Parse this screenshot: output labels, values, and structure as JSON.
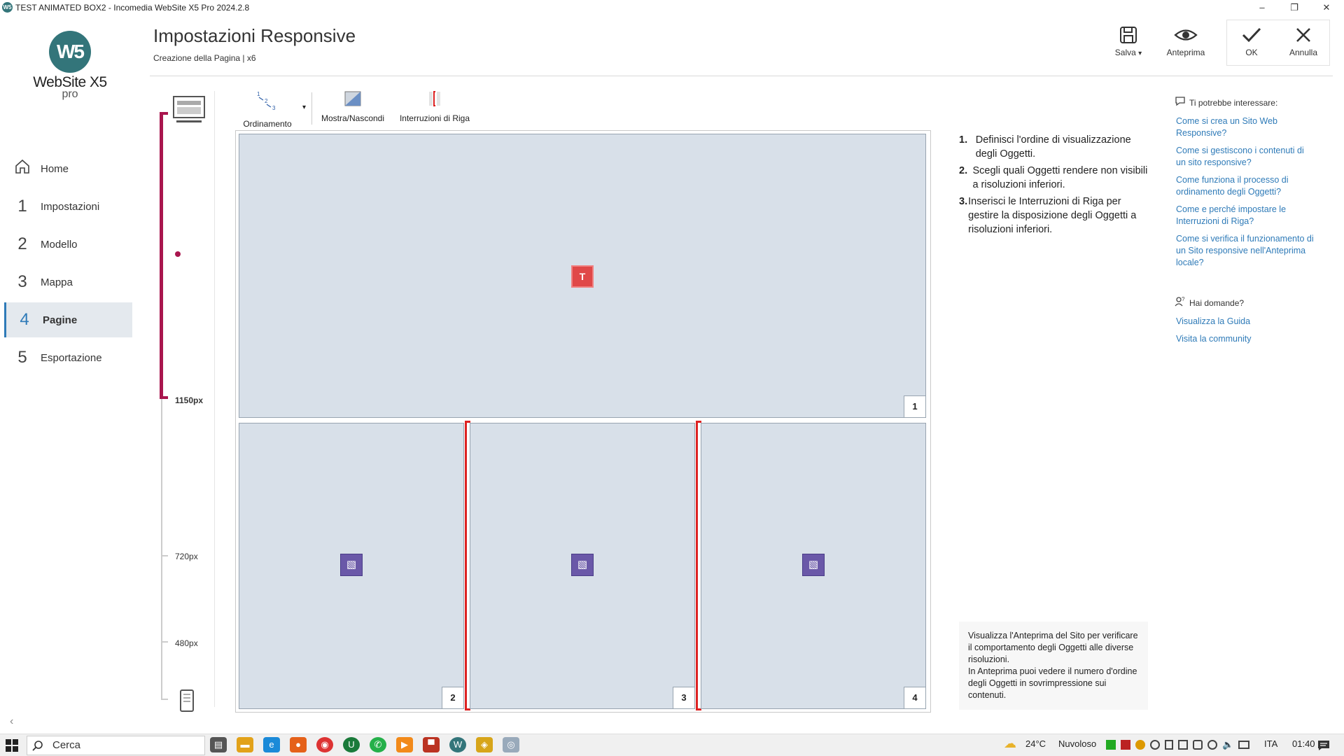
{
  "window": {
    "title": "TEST ANIMATED BOX2 - Incomedia WebSite X5 Pro 2024.2.8",
    "minimize": "–",
    "restore": "❐",
    "close": "✕"
  },
  "logo": {
    "mark": "W5",
    "name": "WebSite X5",
    "edition": "pro"
  },
  "sidebar": {
    "items": [
      {
        "num": "",
        "label": "Home"
      },
      {
        "num": "1",
        "label": "Impostazioni"
      },
      {
        "num": "2",
        "label": "Modello"
      },
      {
        "num": "3",
        "label": "Mappa"
      },
      {
        "num": "4",
        "label": "Pagine"
      },
      {
        "num": "5",
        "label": "Esportazione"
      }
    ],
    "active": "Pagine",
    "collapse": "‹"
  },
  "header": {
    "title": "Impostazioni Responsive",
    "subtitle": "Creazione della Pagina | x6",
    "buttons": {
      "save": "Salva",
      "save_dropdown": "▾",
      "preview": "Anteprima",
      "ok": "OK",
      "cancel": "Annulla"
    }
  },
  "ruler": {
    "breakpoints": [
      "1150px",
      "720px",
      "480px"
    ],
    "accent": "#a9164e"
  },
  "toolbar": {
    "ordering": "Ordinamento",
    "ordering_dropdown": "▾",
    "show_hide": "Mostra/Nascondi",
    "line_breaks": "Interruzioni di Riga"
  },
  "canvas": {
    "cells": [
      {
        "num": "1",
        "object": "text"
      },
      {
        "num": "2",
        "object": "image"
      },
      {
        "num": "3",
        "object": "image"
      },
      {
        "num": "4",
        "object": "image"
      }
    ]
  },
  "instructions": [
    {
      "n": "1.",
      "text": "Definisci l'ordine di visualizzazione degli Oggetti."
    },
    {
      "n": "2.",
      "text": "Scegli quali Oggetti rendere non visibili a risoluzioni inferiori."
    },
    {
      "n": "3.",
      "text": "Inserisci le Interruzioni di Riga per gestire la disposizione degli Oggetti a risoluzioni inferiori."
    }
  ],
  "help": {
    "title": "Ti potrebbe interessare:",
    "links": [
      "Come si crea un Sito Web Responsive?",
      "Come si gestiscono i contenuti di un sito responsive?",
      "Come funziona il processo di ordinamento degli Oggetti?",
      "Come e perché impostare le Interruzioni di Riga?",
      "Come si verifica il funzionamento di un Sito responsive nell'Anteprima locale?"
    ],
    "faq_title": "Hai domande?",
    "faq_links": [
      "Visualizza la Guida",
      "Visita la community"
    ]
  },
  "tip": {
    "line1": "Visualizza l'Anteprima del Sito per verificare il comportamento degli Oggetti alle diverse risoluzioni.",
    "line2": "In Anteprima puoi vedere il numero d'ordine degli Oggetti in sovrimpressione sui contenuti."
  },
  "taskbar": {
    "search_placeholder": "Cerca",
    "weather_temp": "24°C",
    "weather_desc": "Nuvoloso",
    "lang": "ITA",
    "time": "01:40"
  }
}
